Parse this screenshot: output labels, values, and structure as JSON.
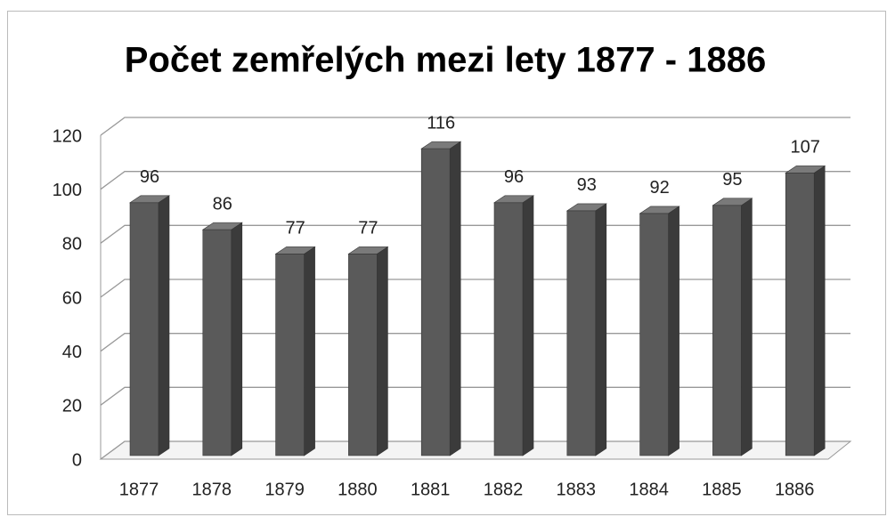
{
  "chart_data": {
    "type": "bar3d",
    "title": "Počet zemřelých mezi lety 1877 - 1886",
    "categories": [
      "1877",
      "1878",
      "1879",
      "1880",
      "1881",
      "1882",
      "1883",
      "1884",
      "1885",
      "1886"
    ],
    "values": [
      96,
      86,
      77,
      77,
      116,
      96,
      93,
      92,
      95,
      107
    ],
    "color": "#5a5a5a",
    "ylim": [
      0,
      120
    ],
    "yticks": [
      0,
      20,
      40,
      60,
      80,
      100,
      120
    ],
    "grid": true
  }
}
